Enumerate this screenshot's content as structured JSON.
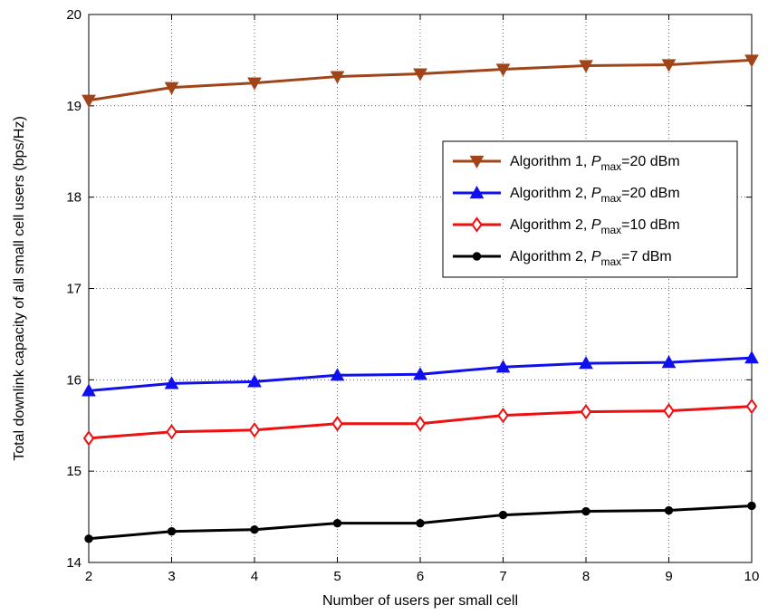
{
  "chart_data": {
    "type": "line",
    "title": "",
    "xlabel": "Number of users per small cell",
    "ylabel": "Total downlink capacity of all small cell users (bps/Hz)",
    "x": [
      2,
      3,
      4,
      5,
      6,
      7,
      8,
      9,
      10
    ],
    "xlim": [
      2,
      10
    ],
    "ylim": [
      14,
      20
    ],
    "xticks": [
      "2",
      "3",
      "4",
      "5",
      "6",
      "7",
      "8",
      "9",
      "10"
    ],
    "yticks": [
      "14",
      "15",
      "16",
      "17",
      "18",
      "19",
      "20"
    ],
    "grid": true,
    "legend_position": "right",
    "series": [
      {
        "name": "Algorithm 1, P_max=20 dBm",
        "label_prefix": "Algorithm 1, ",
        "label_p": "P",
        "label_sub": "max",
        "label_suffix": "=20 dBm",
        "color": "#a0441a",
        "marker": "triangle-down",
        "values": [
          19.06,
          19.2,
          19.25,
          19.32,
          19.35,
          19.4,
          19.44,
          19.45,
          19.5
        ]
      },
      {
        "name": "Algorithm 2, P_max=20 dBm",
        "label_prefix": "Algorithm 2, ",
        "label_p": "P",
        "label_sub": "max",
        "label_suffix": "=20 dBm",
        "color": "#1010ee",
        "marker": "triangle-up",
        "values": [
          15.88,
          15.96,
          15.98,
          16.05,
          16.06,
          16.14,
          16.18,
          16.19,
          16.24
        ]
      },
      {
        "name": "Algorithm 2, P_max=10 dBm",
        "label_prefix": "Algorithm 2, ",
        "label_p": "P",
        "label_sub": "max",
        "label_suffix": "=10 dBm",
        "color": "#ee1010",
        "marker": "diamond",
        "values": [
          15.36,
          15.43,
          15.45,
          15.52,
          15.52,
          15.61,
          15.65,
          15.66,
          15.71
        ]
      },
      {
        "name": "Algorithm 2, P_max=7 dBm",
        "label_prefix": "Algorithm 2, ",
        "label_p": "P",
        "label_sub": "max",
        "label_suffix": "=7 dBm",
        "color": "#000000",
        "marker": "circle",
        "values": [
          14.26,
          14.34,
          14.36,
          14.43,
          14.43,
          14.52,
          14.56,
          14.57,
          14.62
        ]
      }
    ]
  }
}
